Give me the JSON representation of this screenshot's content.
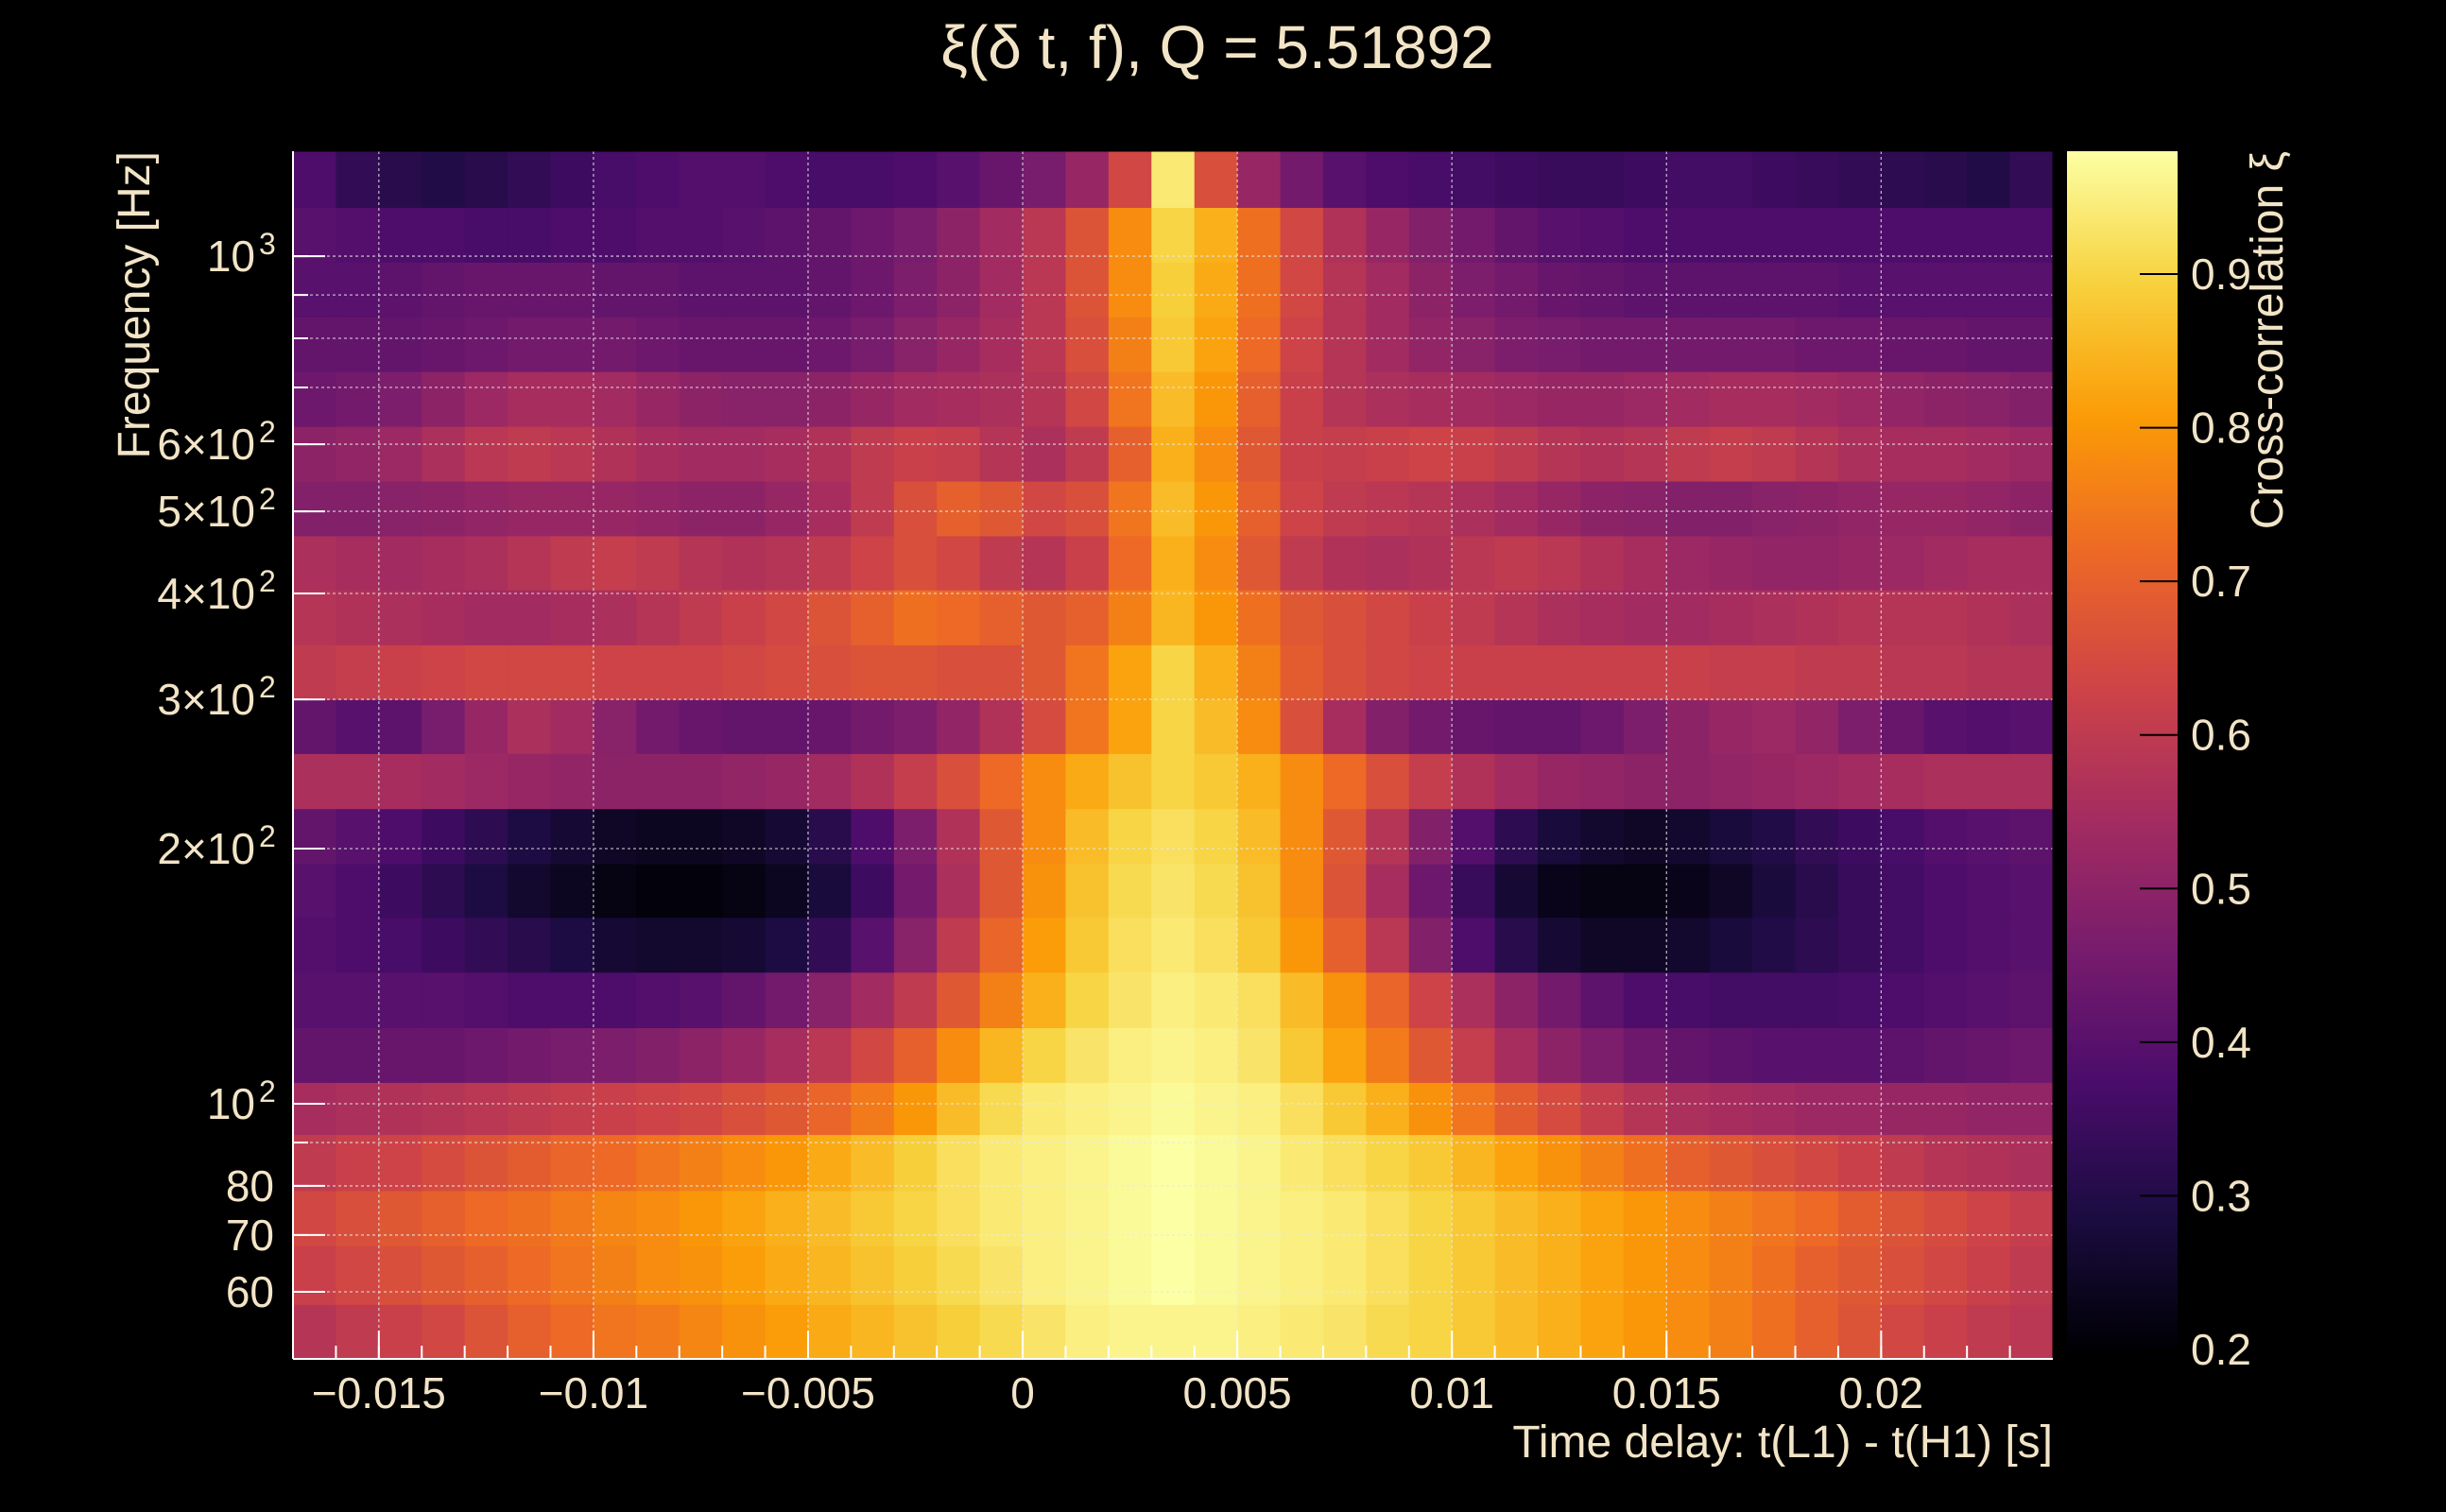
{
  "chart_data": {
    "type": "heatmap",
    "title": "ξ(δ t, f), Q = 5.51892",
    "xlabel": "Time delay: t(L1) - t(H1) [s]",
    "ylabel": "Frequency [Hz]",
    "colorbar_label": "Cross-correlation ξ",
    "xlim": [
      -0.017,
      0.024
    ],
    "ylim": [
      50,
      1330
    ],
    "y_scale": "log",
    "clim": [
      0.2,
      0.98
    ],
    "grid": true,
    "x_ticks": [
      {
        "value": -0.015,
        "label": "−0.015"
      },
      {
        "value": -0.01,
        "label": "−0.01"
      },
      {
        "value": -0.005,
        "label": "−0.005"
      },
      {
        "value": 0,
        "label": "0"
      },
      {
        "value": 0.005,
        "label": "0.005"
      },
      {
        "value": 0.01,
        "label": "0.01"
      },
      {
        "value": 0.015,
        "label": "0.015"
      },
      {
        "value": 0.02,
        "label": "0.02"
      }
    ],
    "y_ticks": [
      {
        "value": 60,
        "label": "60",
        "exp": ""
      },
      {
        "value": 70,
        "label": "70",
        "exp": ""
      },
      {
        "value": 80,
        "label": "80",
        "exp": ""
      },
      {
        "value": 100,
        "label": "10",
        "exp": "2"
      },
      {
        "value": 200,
        "label": "2×10",
        "exp": "2"
      },
      {
        "value": 300,
        "label": "3×10",
        "exp": "2"
      },
      {
        "value": 400,
        "label": "4×10",
        "exp": "2"
      },
      {
        "value": 500,
        "label": "5×10",
        "exp": "2"
      },
      {
        "value": 600,
        "label": "6×10",
        "exp": "2"
      },
      {
        "value": 1000,
        "label": "10",
        "exp": "3"
      }
    ],
    "colorbar_ticks": [
      {
        "value": 0.2,
        "label": "0.2"
      },
      {
        "value": 0.3,
        "label": "0.3"
      },
      {
        "value": 0.4,
        "label": "0.4"
      },
      {
        "value": 0.5,
        "label": "0.5"
      },
      {
        "value": 0.6,
        "label": "0.6"
      },
      {
        "value": 0.7,
        "label": "0.7"
      },
      {
        "value": 0.8,
        "label": "0.8"
      },
      {
        "value": 0.9,
        "label": "0.9"
      }
    ],
    "colormap": [
      "#000004",
      "#1b0c41",
      "#4a0c6b",
      "#781c6d",
      "#a52c60",
      "#cf4446",
      "#ed6925",
      "#fb9b06",
      "#f7d13d",
      "#fcffa4"
    ],
    "x_edges": [
      -0.017,
      -0.016,
      -0.015,
      -0.014,
      -0.013,
      -0.012,
      -0.011,
      -0.01,
      -0.009,
      -0.008,
      -0.007,
      -0.006,
      -0.005,
      -0.004,
      -0.003,
      -0.002,
      -0.001,
      0,
      0.001,
      0.002,
      0.003,
      0.004,
      0.005,
      0.006,
      0.007,
      0.008,
      0.009,
      0.01,
      0.011,
      0.012,
      0.013,
      0.014,
      0.015,
      0.016,
      0.017,
      0.018,
      0.019,
      0.02,
      0.021,
      0.022,
      0.023,
      0.024
    ],
    "y_edges": [
      50,
      58,
      68,
      79,
      92,
      106,
      123,
      143,
      166,
      192,
      223,
      259,
      300,
      348,
      404,
      468,
      543,
      630,
      731,
      848,
      984,
      1142,
      1330
    ],
    "z": [
      [
        0.58,
        0.6,
        0.62,
        0.64,
        0.67,
        0.7,
        0.72,
        0.74,
        0.75,
        0.77,
        0.79,
        0.81,
        0.83,
        0.85,
        0.87,
        0.89,
        0.91,
        0.93,
        0.95,
        0.96,
        0.96,
        0.96,
        0.95,
        0.94,
        0.93,
        0.91,
        0.9,
        0.88,
        0.86,
        0.84,
        0.82,
        0.8,
        0.78,
        0.76,
        0.73,
        0.7,
        0.67,
        0.64,
        0.62,
        0.6,
        0.59
      ],
      [
        0.62,
        0.64,
        0.66,
        0.68,
        0.7,
        0.72,
        0.74,
        0.76,
        0.78,
        0.79,
        0.81,
        0.83,
        0.85,
        0.87,
        0.89,
        0.91,
        0.93,
        0.95,
        0.96,
        0.97,
        0.98,
        0.97,
        0.96,
        0.95,
        0.94,
        0.92,
        0.9,
        0.88,
        0.86,
        0.84,
        0.82,
        0.8,
        0.78,
        0.76,
        0.73,
        0.7,
        0.68,
        0.66,
        0.64,
        0.62,
        0.6
      ],
      [
        0.64,
        0.66,
        0.68,
        0.7,
        0.72,
        0.73,
        0.75,
        0.77,
        0.78,
        0.8,
        0.82,
        0.84,
        0.86,
        0.88,
        0.9,
        0.92,
        0.94,
        0.95,
        0.96,
        0.97,
        0.98,
        0.97,
        0.96,
        0.95,
        0.94,
        0.92,
        0.9,
        0.88,
        0.86,
        0.84,
        0.82,
        0.8,
        0.78,
        0.76,
        0.74,
        0.72,
        0.69,
        0.67,
        0.65,
        0.63,
        0.61
      ],
      [
        0.6,
        0.62,
        0.63,
        0.65,
        0.67,
        0.69,
        0.71,
        0.72,
        0.74,
        0.76,
        0.78,
        0.8,
        0.83,
        0.86,
        0.89,
        0.92,
        0.94,
        0.95,
        0.96,
        0.97,
        0.98,
        0.97,
        0.96,
        0.94,
        0.92,
        0.9,
        0.88,
        0.85,
        0.82,
        0.79,
        0.76,
        0.73,
        0.7,
        0.68,
        0.66,
        0.64,
        0.62,
        0.6,
        0.58,
        0.57,
        0.56
      ],
      [
        0.55,
        0.56,
        0.57,
        0.58,
        0.59,
        0.6,
        0.61,
        0.62,
        0.63,
        0.64,
        0.66,
        0.68,
        0.71,
        0.75,
        0.8,
        0.86,
        0.91,
        0.94,
        0.95,
        0.96,
        0.97,
        0.96,
        0.95,
        0.92,
        0.88,
        0.84,
        0.79,
        0.74,
        0.69,
        0.65,
        0.61,
        0.58,
        0.56,
        0.55,
        0.54,
        0.53,
        0.53,
        0.52,
        0.52,
        0.51,
        0.51
      ],
      [
        0.42,
        0.42,
        0.43,
        0.43,
        0.44,
        0.45,
        0.46,
        0.47,
        0.48,
        0.5,
        0.52,
        0.55,
        0.59,
        0.64,
        0.7,
        0.78,
        0.85,
        0.9,
        0.93,
        0.95,
        0.96,
        0.95,
        0.93,
        0.88,
        0.82,
        0.75,
        0.68,
        0.61,
        0.55,
        0.5,
        0.47,
        0.44,
        0.42,
        0.41,
        0.4,
        0.4,
        0.4,
        0.41,
        0.42,
        0.43,
        0.44
      ],
      [
        0.4,
        0.4,
        0.4,
        0.4,
        0.39,
        0.38,
        0.38,
        0.38,
        0.39,
        0.4,
        0.42,
        0.45,
        0.49,
        0.54,
        0.6,
        0.68,
        0.76,
        0.84,
        0.9,
        0.93,
        0.95,
        0.94,
        0.92,
        0.86,
        0.79,
        0.71,
        0.63,
        0.56,
        0.5,
        0.45,
        0.41,
        0.38,
        0.37,
        0.36,
        0.36,
        0.36,
        0.37,
        0.38,
        0.39,
        0.4,
        0.41
      ],
      [
        0.39,
        0.38,
        0.37,
        0.35,
        0.33,
        0.31,
        0.29,
        0.27,
        0.26,
        0.26,
        0.27,
        0.29,
        0.33,
        0.4,
        0.49,
        0.6,
        0.71,
        0.81,
        0.88,
        0.92,
        0.94,
        0.92,
        0.88,
        0.8,
        0.7,
        0.59,
        0.48,
        0.38,
        0.31,
        0.27,
        0.25,
        0.25,
        0.26,
        0.28,
        0.3,
        0.32,
        0.34,
        0.36,
        0.38,
        0.39,
        0.4
      ],
      [
        0.4,
        0.38,
        0.35,
        0.32,
        0.29,
        0.26,
        0.24,
        0.22,
        0.21,
        0.21,
        0.22,
        0.24,
        0.28,
        0.35,
        0.45,
        0.56,
        0.68,
        0.79,
        0.87,
        0.91,
        0.93,
        0.91,
        0.87,
        0.78,
        0.67,
        0.55,
        0.44,
        0.34,
        0.27,
        0.23,
        0.22,
        0.22,
        0.23,
        0.25,
        0.28,
        0.31,
        0.34,
        0.36,
        0.38,
        0.39,
        0.4
      ],
      [
        0.42,
        0.4,
        0.38,
        0.35,
        0.32,
        0.29,
        0.27,
        0.25,
        0.24,
        0.24,
        0.25,
        0.27,
        0.31,
        0.38,
        0.47,
        0.57,
        0.68,
        0.78,
        0.86,
        0.9,
        0.92,
        0.9,
        0.86,
        0.78,
        0.68,
        0.58,
        0.48,
        0.39,
        0.32,
        0.28,
        0.26,
        0.25,
        0.26,
        0.28,
        0.3,
        0.33,
        0.35,
        0.37,
        0.39,
        0.4,
        0.41
      ],
      [
        0.56,
        0.56,
        0.55,
        0.54,
        0.53,
        0.52,
        0.51,
        0.5,
        0.5,
        0.5,
        0.51,
        0.52,
        0.54,
        0.57,
        0.61,
        0.66,
        0.72,
        0.78,
        0.83,
        0.87,
        0.9,
        0.88,
        0.84,
        0.78,
        0.72,
        0.66,
        0.61,
        0.57,
        0.54,
        0.52,
        0.51,
        0.5,
        0.5,
        0.51,
        0.52,
        0.53,
        0.54,
        0.55,
        0.56,
        0.56,
        0.56
      ],
      [
        0.42,
        0.4,
        0.41,
        0.46,
        0.52,
        0.56,
        0.54,
        0.49,
        0.45,
        0.43,
        0.42,
        0.42,
        0.43,
        0.45,
        0.47,
        0.51,
        0.57,
        0.65,
        0.74,
        0.82,
        0.9,
        0.86,
        0.78,
        0.66,
        0.55,
        0.48,
        0.45,
        0.43,
        0.42,
        0.42,
        0.44,
        0.47,
        0.5,
        0.52,
        0.53,
        0.51,
        0.47,
        0.43,
        0.4,
        0.39,
        0.4
      ],
      [
        0.6,
        0.61,
        0.62,
        0.63,
        0.64,
        0.64,
        0.64,
        0.63,
        0.63,
        0.63,
        0.64,
        0.65,
        0.66,
        0.67,
        0.67,
        0.66,
        0.66,
        0.68,
        0.74,
        0.82,
        0.9,
        0.84,
        0.76,
        0.69,
        0.66,
        0.64,
        0.63,
        0.62,
        0.62,
        0.62,
        0.62,
        0.62,
        0.62,
        0.61,
        0.61,
        0.6,
        0.6,
        0.59,
        0.59,
        0.58,
        0.58
      ],
      [
        0.58,
        0.57,
        0.56,
        0.55,
        0.54,
        0.54,
        0.55,
        0.56,
        0.58,
        0.6,
        0.62,
        0.64,
        0.67,
        0.7,
        0.73,
        0.72,
        0.7,
        0.68,
        0.7,
        0.76,
        0.85,
        0.8,
        0.73,
        0.68,
        0.66,
        0.64,
        0.62,
        0.6,
        0.58,
        0.56,
        0.55,
        0.54,
        0.54,
        0.55,
        0.56,
        0.57,
        0.58,
        0.58,
        0.58,
        0.57,
        0.56
      ],
      [
        0.56,
        0.55,
        0.54,
        0.55,
        0.56,
        0.58,
        0.6,
        0.61,
        0.6,
        0.58,
        0.57,
        0.58,
        0.6,
        0.63,
        0.66,
        0.64,
        0.6,
        0.58,
        0.62,
        0.72,
        0.84,
        0.78,
        0.68,
        0.6,
        0.57,
        0.56,
        0.57,
        0.59,
        0.6,
        0.59,
        0.57,
        0.55,
        0.53,
        0.52,
        0.51,
        0.51,
        0.52,
        0.53,
        0.54,
        0.55,
        0.55
      ],
      [
        0.48,
        0.48,
        0.49,
        0.5,
        0.51,
        0.52,
        0.52,
        0.52,
        0.51,
        0.5,
        0.5,
        0.52,
        0.55,
        0.6,
        0.66,
        0.7,
        0.68,
        0.64,
        0.66,
        0.74,
        0.86,
        0.8,
        0.7,
        0.63,
        0.6,
        0.59,
        0.58,
        0.56,
        0.54,
        0.52,
        0.5,
        0.49,
        0.48,
        0.48,
        0.49,
        0.5,
        0.51,
        0.52,
        0.52,
        0.51,
        0.5
      ],
      [
        0.5,
        0.51,
        0.53,
        0.56,
        0.59,
        0.6,
        0.59,
        0.57,
        0.55,
        0.54,
        0.54,
        0.55,
        0.57,
        0.6,
        0.62,
        0.61,
        0.58,
        0.56,
        0.6,
        0.7,
        0.84,
        0.78,
        0.68,
        0.62,
        0.61,
        0.62,
        0.63,
        0.62,
        0.6,
        0.58,
        0.57,
        0.58,
        0.6,
        0.61,
        0.6,
        0.58,
        0.56,
        0.55,
        0.55,
        0.54,
        0.53
      ],
      [
        0.44,
        0.45,
        0.47,
        0.5,
        0.53,
        0.55,
        0.55,
        0.54,
        0.52,
        0.5,
        0.49,
        0.49,
        0.5,
        0.52,
        0.54,
        0.55,
        0.56,
        0.58,
        0.64,
        0.74,
        0.86,
        0.8,
        0.7,
        0.62,
        0.58,
        0.56,
        0.55,
        0.54,
        0.53,
        0.52,
        0.52,
        0.53,
        0.54,
        0.55,
        0.55,
        0.54,
        0.53,
        0.51,
        0.5,
        0.49,
        0.48
      ],
      [
        0.42,
        0.42,
        0.42,
        0.43,
        0.44,
        0.45,
        0.45,
        0.45,
        0.44,
        0.43,
        0.43,
        0.43,
        0.44,
        0.46,
        0.49,
        0.52,
        0.55,
        0.59,
        0.66,
        0.76,
        0.88,
        0.82,
        0.72,
        0.63,
        0.58,
        0.54,
        0.51,
        0.49,
        0.47,
        0.46,
        0.45,
        0.45,
        0.45,
        0.45,
        0.45,
        0.44,
        0.44,
        0.43,
        0.43,
        0.42,
        0.42
      ],
      [
        0.4,
        0.4,
        0.41,
        0.42,
        0.43,
        0.43,
        0.43,
        0.42,
        0.42,
        0.41,
        0.41,
        0.41,
        0.42,
        0.44,
        0.47,
        0.5,
        0.54,
        0.59,
        0.67,
        0.78,
        0.89,
        0.83,
        0.73,
        0.64,
        0.58,
        0.54,
        0.5,
        0.47,
        0.45,
        0.43,
        0.42,
        0.41,
        0.41,
        0.41,
        0.41,
        0.41,
        0.4,
        0.4,
        0.4,
        0.4,
        0.4
      ],
      [
        0.4,
        0.39,
        0.38,
        0.38,
        0.37,
        0.37,
        0.38,
        0.38,
        0.39,
        0.39,
        0.4,
        0.41,
        0.42,
        0.44,
        0.46,
        0.5,
        0.54,
        0.59,
        0.67,
        0.78,
        0.9,
        0.84,
        0.73,
        0.64,
        0.57,
        0.52,
        0.48,
        0.45,
        0.42,
        0.4,
        0.39,
        0.38,
        0.38,
        0.38,
        0.38,
        0.38,
        0.38,
        0.38,
        0.38,
        0.38,
        0.38
      ],
      [
        0.38,
        0.33,
        0.31,
        0.3,
        0.31,
        0.33,
        0.35,
        0.37,
        0.38,
        0.39,
        0.39,
        0.38,
        0.37,
        0.37,
        0.38,
        0.4,
        0.43,
        0.46,
        0.52,
        0.64,
        0.94,
        0.66,
        0.52,
        0.45,
        0.4,
        0.38,
        0.37,
        0.36,
        0.35,
        0.34,
        0.34,
        0.35,
        0.36,
        0.36,
        0.35,
        0.34,
        0.33,
        0.32,
        0.31,
        0.3,
        0.33
      ]
    ]
  }
}
